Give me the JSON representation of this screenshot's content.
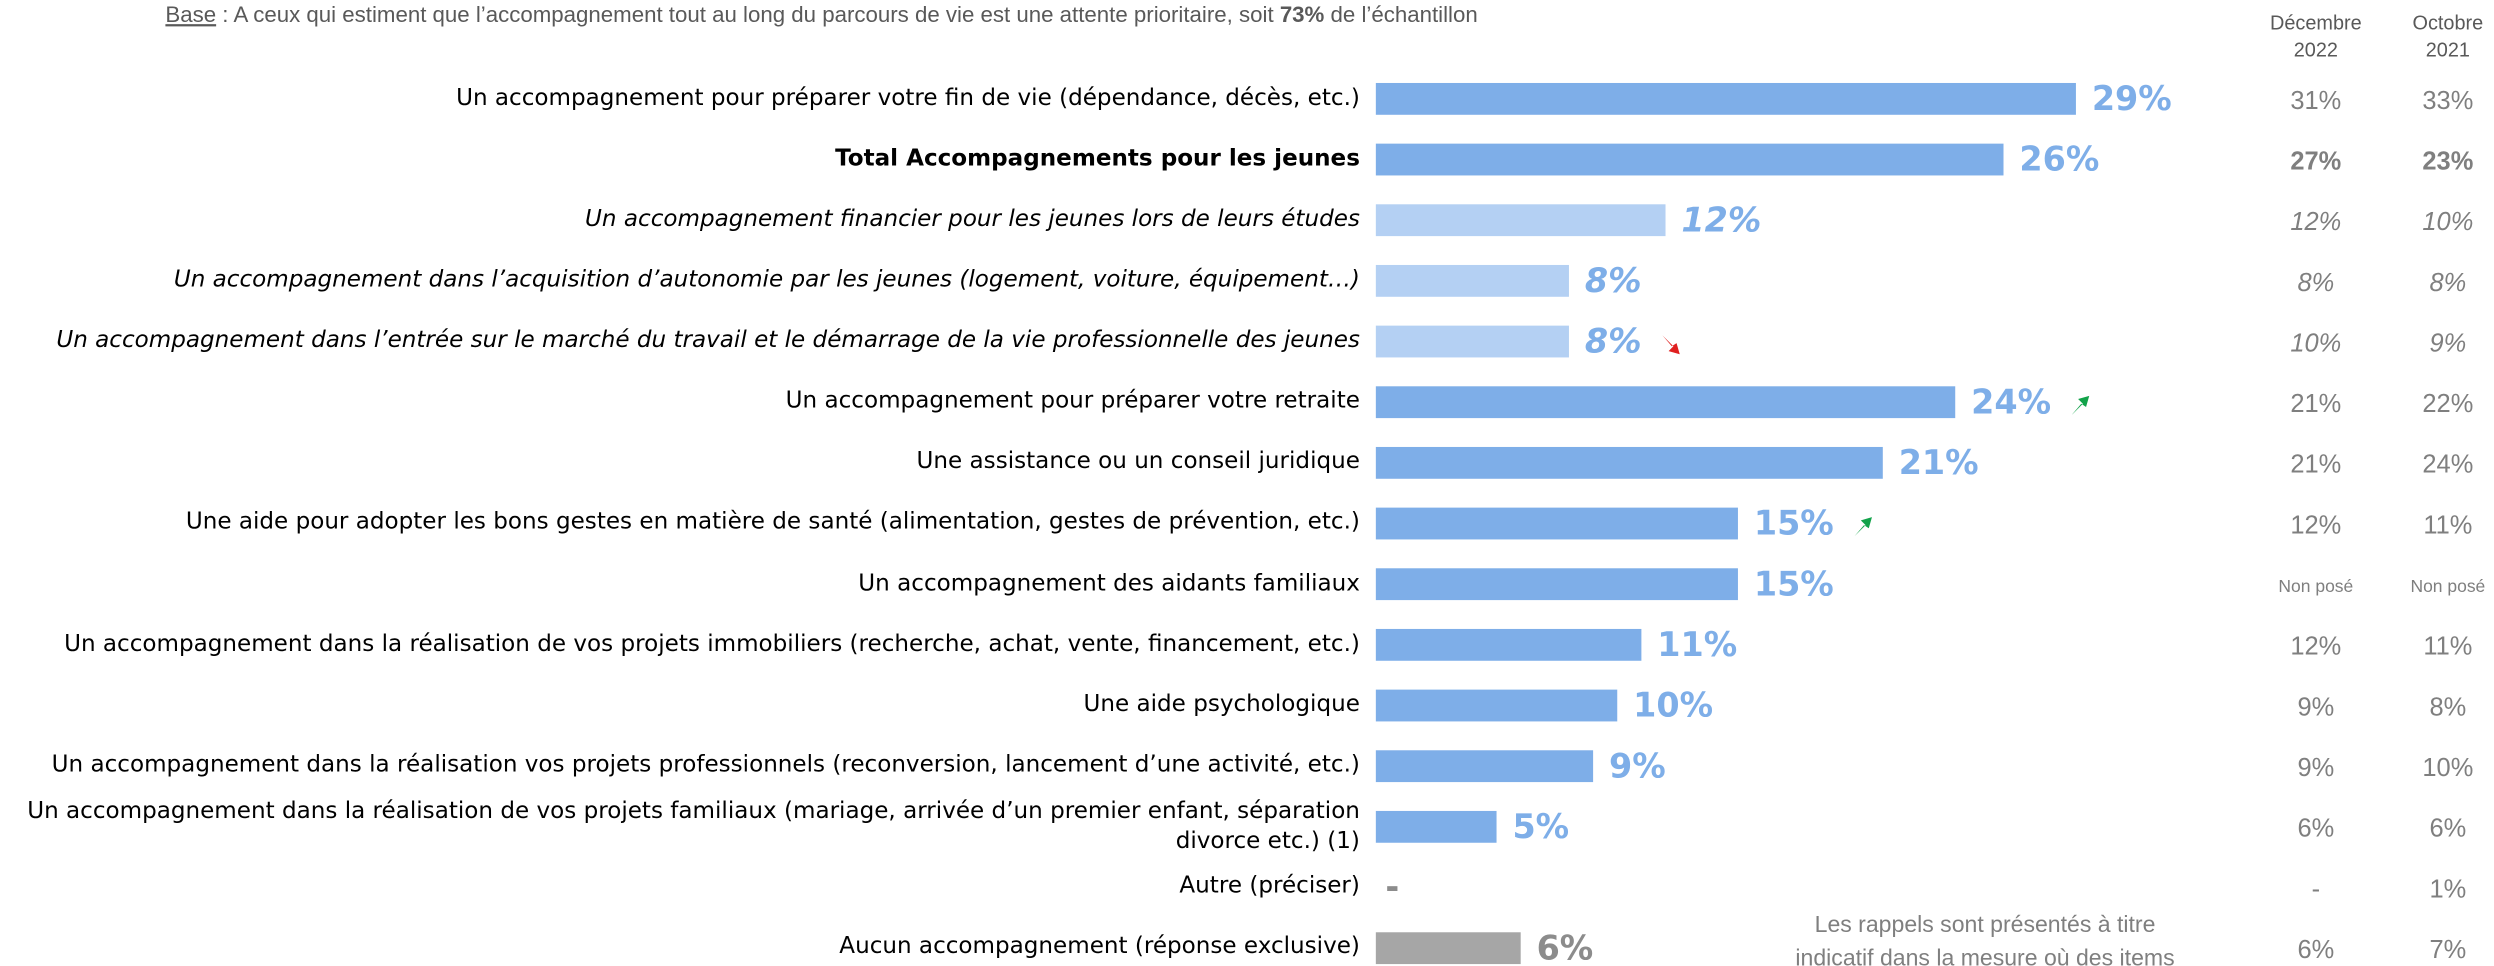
{
  "chart_data": {
    "type": "bar",
    "orientation": "horizontal",
    "base": {
      "label": "Base",
      "text_before": " : A ceux qui estiment que l’accompagnement tout au long du parcours de vie est une attente prioritaire, soit ",
      "highlight": "73%",
      "text_after": " de l’échantillon"
    },
    "categories": [
      "Un accompagnement pour préparer votre fin de vie (dépendance, décès, etc.)",
      "Total Accompagnements pour les jeunes",
      "Un accompagnement financier pour les jeunes lors de leurs études",
      "Un accompagnement dans l’acquisition d’autonomie par les jeunes (logement, voiture, équipement…)",
      "Un accompagnement dans l’entrée sur le marché du travail et le démarrage de la vie professionnelle des jeunes",
      "Un accompagnement pour préparer votre retraite",
      "Une assistance ou un conseil juridique",
      "Une aide pour adopter les bons gestes en matière de santé (alimentation, gestes de prévention, etc.)",
      "Un accompagnement des aidants familiaux",
      "Un accompagnement dans la réalisation de vos projets immobiliers (recherche, achat, vente, financement, etc.)",
      "Une aide psychologique",
      "Un accompagnement dans la réalisation vos projets professionnels (reconversion, lancement d’une activité, etc.)",
      "Un accompagnement dans la réalisation de vos projets familiaux (mariage, arrivée d’un premier enfant, séparation divorce etc.) (1)",
      "Autre (préciser)",
      "Aucun accompagnement (réponse exclusive)"
    ],
    "values": [
      29,
      26,
      12,
      8,
      8,
      24,
      21,
      15,
      15,
      11,
      10,
      9,
      5,
      null,
      6
    ],
    "value_labels": [
      "29%",
      "26%",
      "12%",
      "8%",
      "8%",
      "24%",
      "21%",
      "15%",
      "15%",
      "11%",
      "10%",
      "9%",
      "5%",
      "-",
      "6%"
    ],
    "colors": [
      "#7eaee8",
      "#7eaee8",
      "#b4d0f3",
      "#b4d0f3",
      "#b4d0f3",
      "#7eaee8",
      "#7eaee8",
      "#7eaee8",
      "#7eaee8",
      "#7eaee8",
      "#7eaee8",
      "#7eaee8",
      "#7eaee8",
      "#a6a6a6",
      "#a6a6a6"
    ],
    "row_styles": [
      "normal",
      "bold",
      "italic",
      "italic",
      "italic",
      "normal",
      "normal",
      "normal",
      "normal",
      "normal",
      "normal",
      "normal",
      "normal",
      "normal",
      "normal"
    ],
    "trends": [
      null,
      null,
      null,
      null,
      "down",
      "up",
      null,
      "up",
      null,
      null,
      null,
      null,
      null,
      null,
      null
    ],
    "xlim": [
      0,
      45
    ],
    "comparisons": [
      {
        "name_lines": [
          "Décembre",
          "2022"
        ],
        "values": [
          31,
          27,
          12,
          8,
          10,
          21,
          21,
          12,
          null,
          12,
          9,
          9,
          6,
          null,
          6
        ],
        "value_labels": [
          "31%",
          "27%",
          "12%",
          "8%",
          "10%",
          "21%",
          "21%",
          "12%",
          "Non posé",
          "12%",
          "9%",
          "9%",
          "6%",
          "-",
          "6%"
        ]
      },
      {
        "name_lines": [
          "Octobre",
          "2021"
        ],
        "values": [
          33,
          23,
          10,
          8,
          9,
          22,
          24,
          11,
          null,
          11,
          8,
          10,
          6,
          1,
          7
        ],
        "value_labels": [
          "33%",
          "23%",
          "10%",
          "8%",
          "9%",
          "22%",
          "24%",
          "11%",
          "Non posé",
          "11%",
          "8%",
          "10%",
          "6%",
          "1%",
          "7%"
        ]
      }
    ],
    "note_lines": [
      "Les rappels sont présentés à titre",
      "indicatif dans la mesure où des items"
    ]
  }
}
